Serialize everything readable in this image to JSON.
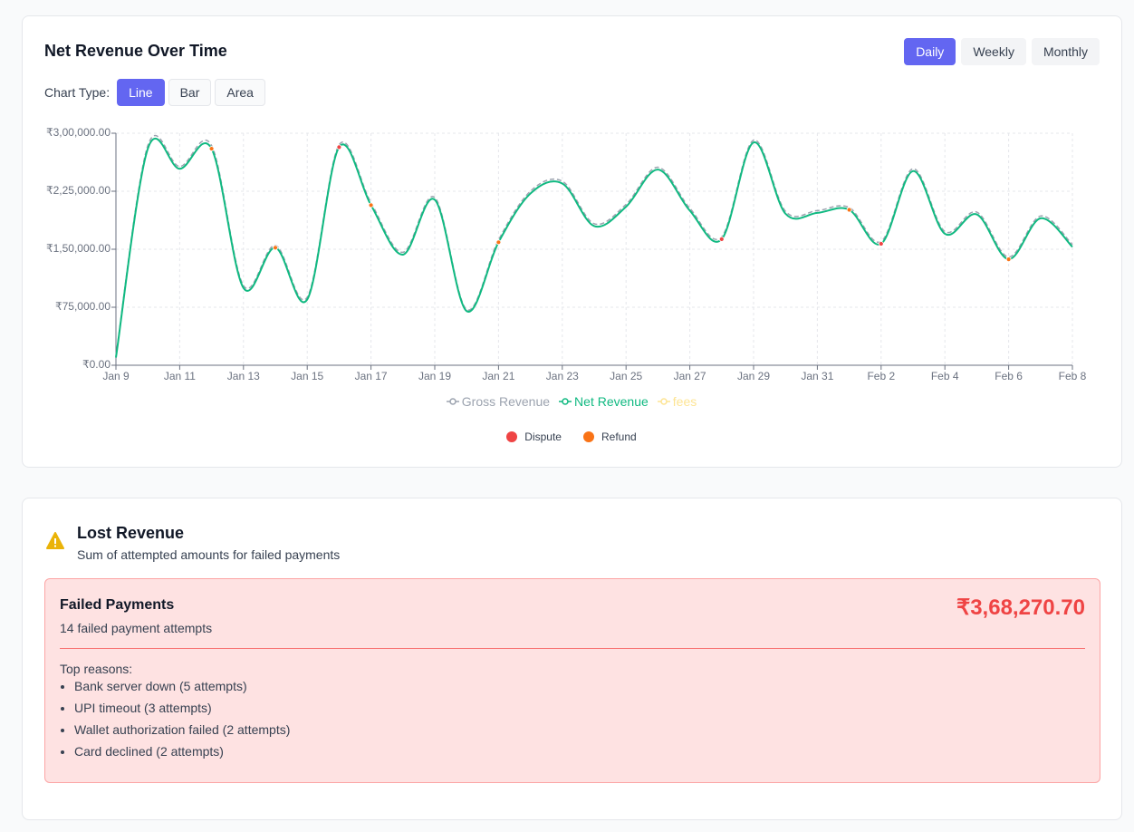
{
  "header": {
    "title": "Net Revenue Over Time",
    "periods": [
      "Daily",
      "Weekly",
      "Monthly"
    ],
    "active_period": 0
  },
  "chart_type": {
    "label": "Chart Type:",
    "options": [
      "Line",
      "Bar",
      "Area"
    ],
    "active": 0
  },
  "chart_data": {
    "type": "line",
    "categories": [
      "Jan 9",
      null,
      "Jan 11",
      null,
      "Jan 13",
      null,
      "Jan 15",
      null,
      "Jan 17",
      null,
      "Jan 19",
      null,
      "Jan 21",
      null,
      "Jan 23",
      null,
      "Jan 25",
      null,
      "Jan 27",
      null,
      "Jan 29",
      null,
      "Jan 31",
      null,
      "Feb 2",
      null,
      "Feb 4",
      null,
      "Feb 6",
      null,
      "Feb 8"
    ],
    "series": [
      {
        "name": "Gross Revenue",
        "color": "#9ca3af",
        "dashed": true,
        "values": [
          12000,
          284000,
          257000,
          284000,
          103000,
          155000,
          88000,
          285000,
          210000,
          146000,
          217000,
          72000,
          162000,
          225000,
          238000,
          183000,
          208000,
          256000,
          203000,
          166000,
          291000,
          199000,
          200000,
          204000,
          160000,
          254000,
          173000,
          198000,
          140000,
          193000,
          156000
        ]
      },
      {
        "name": "Net Revenue",
        "color": "#10b981",
        "dashed": false,
        "values": [
          10000,
          280000,
          254000,
          280000,
          100000,
          152000,
          85000,
          282000,
          207000,
          143000,
          214000,
          70000,
          159000,
          222000,
          235000,
          180000,
          205000,
          253000,
          200000,
          163000,
          288000,
          196000,
          197000,
          201000,
          157000,
          251000,
          170000,
          195000,
          137000,
          190000,
          153000
        ]
      },
      {
        "name": "fees",
        "color": "#fcd34d",
        "hidden": true
      }
    ],
    "ylim": [
      0,
      300000
    ],
    "yticks": [
      {
        "value": 0,
        "label": "₹0.00"
      },
      {
        "value": 75000,
        "label": "₹75,000.00"
      },
      {
        "value": 150000,
        "label": "₹1,50,000.00"
      },
      {
        "value": 225000,
        "label": "₹2,25,000.00"
      },
      {
        "value": 300000,
        "label": "₹3,00,000.00"
      }
    ],
    "grid": true,
    "markers": [
      {
        "name": "Dispute",
        "color": "#ef4444"
      },
      {
        "name": "Refund",
        "color": "#f97316"
      }
    ],
    "events": [
      {
        "index": 3,
        "kind": 1
      },
      {
        "index": 5,
        "kind": 1
      },
      {
        "index": 7,
        "kind": 0
      },
      {
        "index": 8,
        "kind": 1
      },
      {
        "index": 12,
        "kind": 1
      },
      {
        "index": 19,
        "kind": 0
      },
      {
        "index": 23,
        "kind": 1
      },
      {
        "index": 24,
        "kind": 0
      },
      {
        "index": 28,
        "kind": 1
      }
    ]
  },
  "lost_revenue": {
    "title": "Lost Revenue",
    "subtitle": "Sum of attempted amounts for failed payments",
    "panel": {
      "title": "Failed Payments",
      "count_text": "14 failed payment attempts",
      "amount": "₹3,68,270.70",
      "reasons_title": "Top reasons:",
      "reasons": [
        "Bank server down (5 attempts)",
        "UPI timeout (3 attempts)",
        "Wallet authorization failed (2 attempts)",
        "Card declined (2 attempts)"
      ]
    }
  }
}
